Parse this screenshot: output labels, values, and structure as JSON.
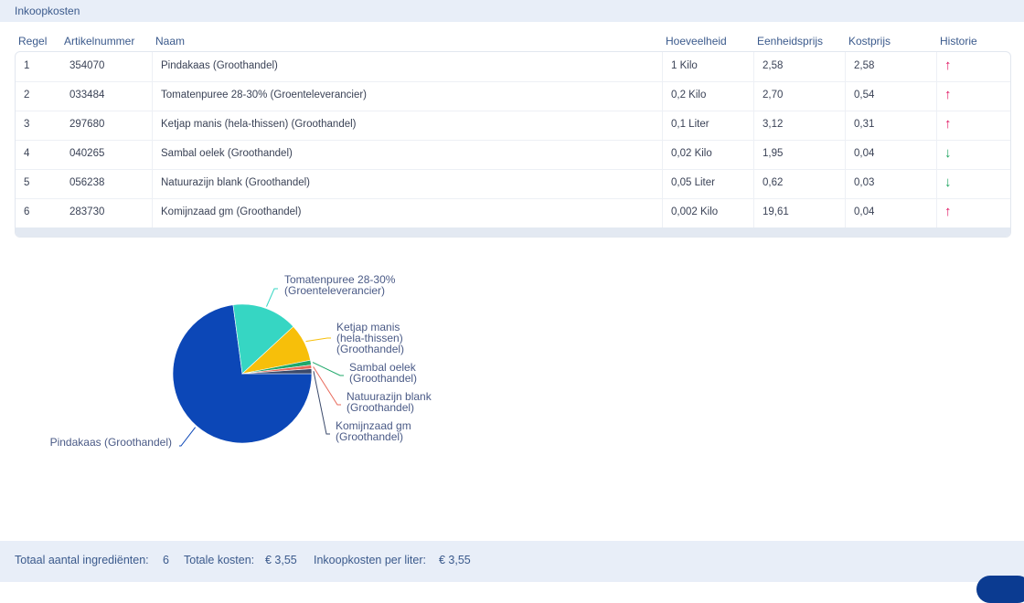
{
  "panel": {
    "title": "Inkoopkosten"
  },
  "columns": {
    "regel": "Regel",
    "artikelnummer": "Artikelnummer",
    "naam": "Naam",
    "hoeveelheid": "Hoeveelheid",
    "eenheidsprijs": "Eenheidsprijs",
    "kostprijs": "Kostprijs",
    "historie": "Historie"
  },
  "rows": [
    {
      "regel": "1",
      "artikelnummer": "354070",
      "naam": "Pindakaas (Groothandel)",
      "hoeveelheid": "1 Kilo",
      "eenheidsprijs": "2,58",
      "kostprijs": "2,58",
      "historie": "↑",
      "trend": "up"
    },
    {
      "regel": "2",
      "artikelnummer": "033484",
      "naam": "Tomatenpuree 28-30% (Groenteleverancier)",
      "hoeveelheid": "0,2 Kilo",
      "eenheidsprijs": "2,70",
      "kostprijs": "0,54",
      "historie": "↑",
      "trend": "up"
    },
    {
      "regel": "3",
      "artikelnummer": "297680",
      "naam": "Ketjap manis (hela-thissen) (Groothandel)",
      "hoeveelheid": "0,1 Liter",
      "eenheidsprijs": "3,12",
      "kostprijs": "0,31",
      "historie": "↑",
      "trend": "up"
    },
    {
      "regel": "4",
      "artikelnummer": "040265",
      "naam": "Sambal oelek (Groothandel)",
      "hoeveelheid": "0,02 Kilo",
      "eenheidsprijs": "1,95",
      "kostprijs": "0,04",
      "historie": "↓",
      "trend": "down"
    },
    {
      "regel": "5",
      "artikelnummer": "056238",
      "naam": "Natuurazijn blank (Groothandel)",
      "hoeveelheid": "0,05 Liter",
      "eenheidsprijs": "0,62",
      "kostprijs": "0,03",
      "historie": "↓",
      "trend": "down"
    },
    {
      "regel": "6",
      "artikelnummer": "283730",
      "naam": "Komijnzaad gm (Groothandel)",
      "hoeveelheid": "0,002 Kilo",
      "eenheidsprijs": "19,61",
      "kostprijs": "0,04",
      "historie": "↑",
      "trend": "up"
    }
  ],
  "colors": {
    "up": "#e0115f",
    "down": "#19a35b"
  },
  "chart_data": {
    "type": "pie",
    "slices": [
      {
        "label": [
          "Pindakaas (Groothandel)"
        ],
        "value": 2.58,
        "color": "#0c47b7"
      },
      {
        "label": [
          "Tomatenpuree 28-30%",
          "(Groenteleverancier)"
        ],
        "value": 0.54,
        "color": "#36d6c3"
      },
      {
        "label": [
          "Ketjap manis",
          "(hela-thissen)",
          "(Groothandel)"
        ],
        "value": 0.31,
        "color": "#f7bf0a"
      },
      {
        "label": [
          "Sambal oelek",
          "(Groothandel)"
        ],
        "value": 0.04,
        "color": "#1fa86a"
      },
      {
        "label": [
          "Natuurazijn blank",
          "(Groothandel)"
        ],
        "value": 0.03,
        "color": "#e8695a"
      },
      {
        "label": [
          "Komijnzaad gm",
          "(Groothandel)"
        ],
        "value": 0.04,
        "color": "#3b4a6b"
      }
    ]
  },
  "footer": {
    "ingredients_label": "Totaal aantal ingrediënten:",
    "ingredients_value": "6",
    "total_label": "Totale kosten:",
    "total_value": "€ 3,55",
    "per_liter_label": "Inkoopkosten per liter:",
    "per_liter_value": "€ 3,55"
  }
}
